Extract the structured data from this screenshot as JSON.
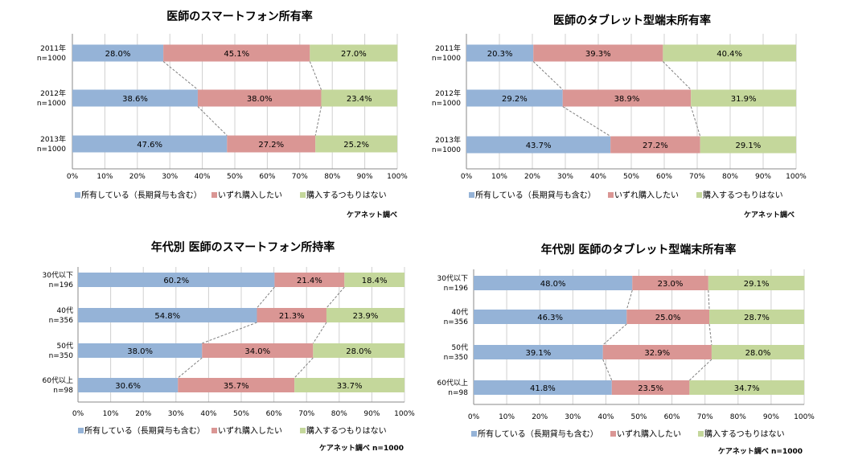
{
  "chart_data": [
    {
      "type": "bar",
      "stacked": true,
      "orientation": "horizontal",
      "title": "医師のスマートフォン所有率",
      "categories": [
        [
          "2011年",
          "n=1000"
        ],
        [
          "2012年",
          "n=1000"
        ],
        [
          "2013年",
          "n=1000"
        ]
      ],
      "series": [
        {
          "name": "所有している（長期貸与も含む）",
          "values": [
            28.0,
            38.6,
            47.6
          ],
          "color": "#95B3D7"
        },
        {
          "name": "いずれ購入したい",
          "values": [
            45.1,
            38.0,
            27.2
          ],
          "color": "#DA9694"
        },
        {
          "name": "購入するつもりはない",
          "values": [
            27.0,
            23.4,
            25.2
          ],
          "color": "#C4D79B"
        }
      ],
      "value_labels": [
        [
          "28.0%",
          "45.1%",
          "27.0%"
        ],
        [
          "38.6%",
          "38.0%",
          "23.4%"
        ],
        [
          "47.6%",
          "27.2%",
          "25.2%"
        ]
      ],
      "xlim": [
        0,
        100
      ],
      "xticks": [
        "0%",
        "10%",
        "20%",
        "30%",
        "40%",
        "50%",
        "60%",
        "70%",
        "80%",
        "90%",
        "100%"
      ],
      "grid": true,
      "legend": "bottom",
      "series_lines": true,
      "source": "ケアネット調べ"
    },
    {
      "type": "bar",
      "stacked": true,
      "orientation": "horizontal",
      "title": "医師のタブレット型端末所有率",
      "categories": [
        [
          "2011年",
          "n=1000"
        ],
        [
          "2012年",
          "n=1000"
        ],
        [
          "2013年",
          "n=1000"
        ]
      ],
      "series": [
        {
          "name": "所有している（長期貸与も含む）",
          "values": [
            20.3,
            29.2,
            43.7
          ],
          "color": "#95B3D7"
        },
        {
          "name": "いずれ購入したい",
          "values": [
            39.3,
            38.9,
            27.2
          ],
          "color": "#DA9694"
        },
        {
          "name": "購入するつもりはない",
          "values": [
            40.4,
            31.9,
            29.1
          ],
          "color": "#C4D79B"
        }
      ],
      "value_labels": [
        [
          "20.3%",
          "39.3%",
          "40.4%"
        ],
        [
          "29.2%",
          "38.9%",
          "31.9%"
        ],
        [
          "43.7%",
          "27.2%",
          "29.1%"
        ]
      ],
      "xlim": [
        0,
        100
      ],
      "xticks": [
        "0%",
        "10%",
        "20%",
        "30%",
        "40%",
        "50%",
        "60%",
        "70%",
        "80%",
        "90%",
        "100%"
      ],
      "grid": true,
      "legend": "bottom",
      "series_lines": true,
      "source": "ケアネット調べ"
    },
    {
      "type": "bar",
      "stacked": true,
      "orientation": "horizontal",
      "title": "年代別 医師のスマートフォン所持率",
      "categories": [
        [
          "30代以下",
          "n=196"
        ],
        [
          "40代",
          "n=356"
        ],
        [
          "50代",
          "n=350"
        ],
        [
          "60代以上",
          "n=98"
        ]
      ],
      "series": [
        {
          "name": "所有している（長期貸与も含む）",
          "values": [
            60.2,
            54.8,
            38.0,
            30.6
          ],
          "color": "#95B3D7"
        },
        {
          "name": "いずれ購入したい",
          "values": [
            21.4,
            21.3,
            34.0,
            35.7
          ],
          "color": "#DA9694"
        },
        {
          "name": "購入するつもりはない",
          "values": [
            18.4,
            23.9,
            28.0,
            33.7
          ],
          "color": "#C4D79B"
        }
      ],
      "value_labels": [
        [
          "60.2%",
          "21.4%",
          "18.4%"
        ],
        [
          "54.8%",
          "21.3%",
          "23.9%"
        ],
        [
          "38.0%",
          "34.0%",
          "28.0%"
        ],
        [
          "30.6%",
          "35.7%",
          "33.7%"
        ]
      ],
      "xlim": [
        0,
        100
      ],
      "xticks": [
        "0%",
        "10%",
        "20%",
        "30%",
        "40%",
        "50%",
        "60%",
        "70%",
        "80%",
        "90%",
        "100%"
      ],
      "grid": true,
      "legend": "bottom",
      "series_lines": true,
      "source": "ケアネット調べ n=1000"
    },
    {
      "type": "bar",
      "stacked": true,
      "orientation": "horizontal",
      "title": "年代別 医師のタブレット型端末所有率",
      "categories": [
        [
          "30代以下",
          "n=196"
        ],
        [
          "40代",
          "n=356"
        ],
        [
          "50代",
          "n=350"
        ],
        [
          "60代以上",
          "n=98"
        ]
      ],
      "series": [
        {
          "name": "所有している（長期貸与も含む）",
          "values": [
            48.0,
            46.3,
            39.1,
            41.8
          ],
          "color": "#95B3D7"
        },
        {
          "name": "いずれ購入したい",
          "values": [
            23.0,
            25.0,
            32.9,
            23.5
          ],
          "color": "#DA9694"
        },
        {
          "name": "購入するつもりはない",
          "values": [
            29.1,
            28.7,
            28.0,
            34.7
          ],
          "color": "#C4D79B"
        }
      ],
      "value_labels": [
        [
          "48.0%",
          "23.0%",
          "29.1%"
        ],
        [
          "46.3%",
          "25.0%",
          "28.7%"
        ],
        [
          "39.1%",
          "32.9%",
          "28.0%"
        ],
        [
          "41.8%",
          "23.5%",
          "34.7%"
        ]
      ],
      "xlim": [
        0,
        100
      ],
      "xticks": [
        "0%",
        "10%",
        "20%",
        "30%",
        "40%",
        "50%",
        "60%",
        "70%",
        "80%",
        "90%",
        "100%"
      ],
      "grid": true,
      "legend": "bottom",
      "series_lines": true,
      "source": "ケアネット調べ n=1000"
    }
  ]
}
